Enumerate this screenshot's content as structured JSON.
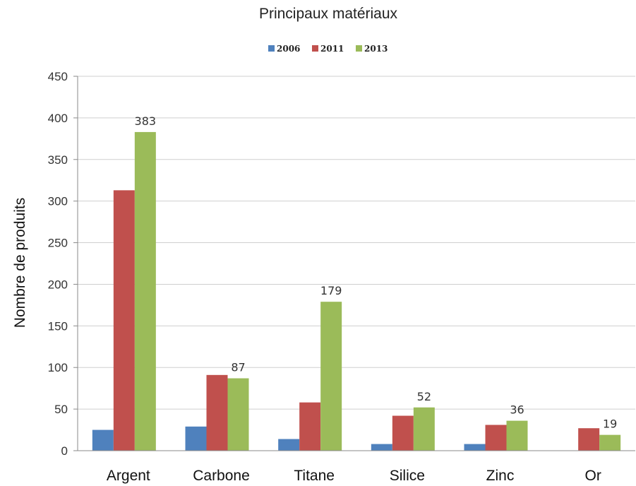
{
  "chart_data": {
    "type": "bar",
    "title": "Principaux matériaux",
    "ylabel": "Nombre de produits",
    "xlabel": "",
    "ylim": [
      0,
      450
    ],
    "yticks": [
      0,
      50,
      100,
      150,
      200,
      250,
      300,
      350,
      400,
      450
    ],
    "grid": true,
    "legend_position": "top-center",
    "categories": [
      "Argent",
      "Carbone",
      "Titane",
      "Silice",
      "Zinc",
      "Or"
    ],
    "series": [
      {
        "name": "2006",
        "color": "#4F81BD",
        "values": [
          25,
          29,
          14,
          8,
          8,
          0
        ]
      },
      {
        "name": "2011",
        "color": "#C0504D",
        "values": [
          313,
          91,
          58,
          42,
          31,
          27
        ]
      },
      {
        "name": "2013",
        "color": "#9BBB59",
        "values": [
          383,
          87,
          179,
          52,
          36,
          19
        ]
      }
    ],
    "data_labels": [
      {
        "series": "2013",
        "category": "Argent",
        "text": "383"
      },
      {
        "series": "2013",
        "category": "Carbone",
        "text": "87"
      },
      {
        "series": "2013",
        "category": "Titane",
        "text": "179"
      },
      {
        "series": "2013",
        "category": "Silice",
        "text": "52"
      },
      {
        "series": "2013",
        "category": "Zinc",
        "text": "36"
      },
      {
        "series": "2013",
        "category": "Or",
        "text": "19"
      }
    ]
  }
}
